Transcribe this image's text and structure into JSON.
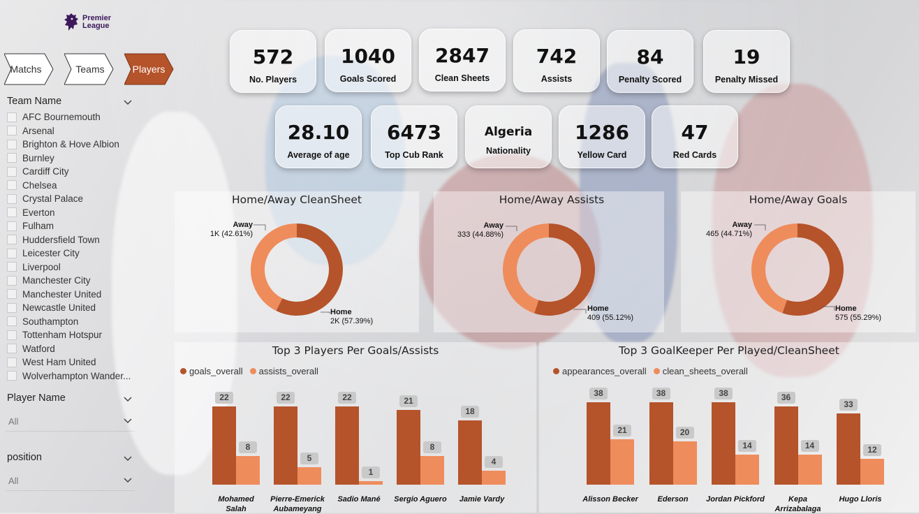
{
  "brand": {
    "logo_line1": "Premier",
    "logo_line2": "League"
  },
  "colors": {
    "dark_orange": "#b5532a",
    "light_orange": "#ef8c5c"
  },
  "nav": [
    {
      "label": "Matchs",
      "active": false
    },
    {
      "label": "Teams",
      "active": false
    },
    {
      "label": "Players",
      "active": true
    }
  ],
  "filters": {
    "team_name_title": "Team Name",
    "teams": [
      "AFC Bournemouth",
      "Arsenal",
      "Brighton & Hove Albion",
      "Burnley",
      "Cardiff City",
      "Chelsea",
      "Crystal Palace",
      "Everton",
      "Fulham",
      "Huddersfield Town",
      "Leicester City",
      "Liverpool",
      "Manchester City",
      "Manchester United",
      "Newcastle United",
      "Southampton",
      "Tottenham Hotspur",
      "Watford",
      "West Ham United",
      "Wolverhampton Wander..."
    ],
    "player_name_title": "Player Name",
    "player_name_value": "All",
    "position_title": "position",
    "position_value": "All"
  },
  "kpis_row1": [
    {
      "value": "572",
      "label": "No. Players"
    },
    {
      "value": "1040",
      "label": "Goals  Scored"
    },
    {
      "value": "2847",
      "label": "Clean Sheets"
    },
    {
      "value": "742",
      "label": "Assists"
    },
    {
      "value": "84",
      "label": "Penalty Scored"
    },
    {
      "value": "19",
      "label": "Penalty Missed"
    }
  ],
  "kpis_row2": [
    {
      "value": "28.10",
      "label": "Average of age"
    },
    {
      "value": "6473",
      "label": "Top Cub Rank"
    },
    {
      "value": "Algeria",
      "label": "Nationality"
    },
    {
      "value": "1286",
      "label": "Yellow Card"
    },
    {
      "value": "47",
      "label": "Red Cards"
    }
  ],
  "donuts": [
    {
      "title": "Home/Away CleanSheet",
      "away_label": "Away",
      "away_value": "1K (42.61%)",
      "away_pct": 42.61,
      "home_label": "Home",
      "home_value": "2K (57.39%)",
      "home_pct": 57.39
    },
    {
      "title": "Home/Away Assists",
      "away_label": "Away",
      "away_value": "333 (44.88%)",
      "away_pct": 44.88,
      "home_label": "Home",
      "home_value": "409 (55.12%)",
      "home_pct": 55.12
    },
    {
      "title": "Home/Away Goals",
      "away_label": "Away",
      "away_value": "465 (44.71%)",
      "away_pct": 44.71,
      "home_label": "Home",
      "home_value": "575 (55.29%)",
      "home_pct": 55.29
    }
  ],
  "chart_data": [
    {
      "type": "bar",
      "title": "Top 3 Players Per Goals/Assists",
      "categories": [
        [
          "Mohamed",
          "Salah"
        ],
        [
          "Pierre-Emerick",
          "Aubameyang"
        ],
        [
          "Sadio Mané"
        ],
        [
          "Sergio Aguero"
        ],
        [
          "Jamie Vardy"
        ]
      ],
      "series": [
        {
          "name": "goals_overall",
          "values": [
            22,
            22,
            22,
            21,
            18
          ]
        },
        {
          "name": "assists_overall",
          "values": [
            8,
            5,
            1,
            8,
            4
          ]
        }
      ],
      "ylim": [
        0,
        22
      ]
    },
    {
      "type": "bar",
      "title": "Top 3 GoalKeeper Per Played/CleanSheet",
      "categories": [
        [
          "Alisson Becker"
        ],
        [
          "Ederson"
        ],
        [
          "Jordan Pickford"
        ],
        [
          "Kepa",
          "Arrizabalaga"
        ],
        [
          "Hugo Lloris"
        ]
      ],
      "series": [
        {
          "name": "appearances_overall",
          "values": [
            38,
            38,
            38,
            36,
            33
          ]
        },
        {
          "name": "clean_sheets_overall",
          "values": [
            21,
            20,
            14,
            14,
            12
          ]
        }
      ],
      "ylim": [
        0,
        38
      ]
    }
  ]
}
